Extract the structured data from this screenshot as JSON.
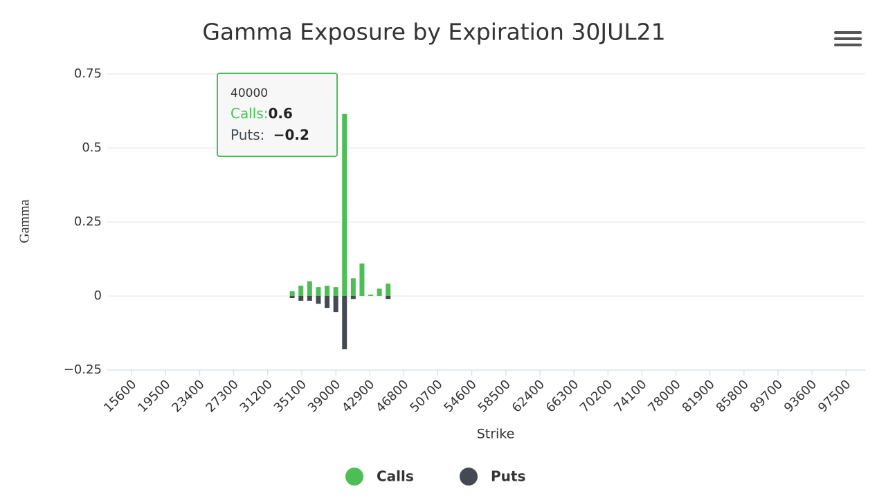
{
  "chart_data": {
    "type": "bar",
    "title": "Gamma Exposure by Expiration 30JUL21",
    "x_label": "Strike",
    "y_label": "Gamma",
    "x": [
      34000,
      35000,
      36000,
      37000,
      38000,
      39000,
      40000,
      41000,
      42000,
      43000,
      44000,
      45000
    ],
    "series": [
      {
        "name": "Calls",
        "color": "#4cbe55",
        "values": [
          0.016,
          0.035,
          0.05,
          0.03,
          0.035,
          0.03,
          0.615,
          0.06,
          0.11,
          0.005,
          0.025,
          0.042
        ]
      },
      {
        "name": "Puts",
        "color": "#434a52",
        "values": [
          -0.007,
          -0.016,
          -0.016,
          -0.026,
          -0.04,
          -0.054,
          -0.18,
          -0.01,
          0,
          0,
          0,
          -0.01
        ]
      }
    ],
    "xlim": [
      12800,
      99700
    ],
    "xticks": [
      15600,
      19500,
      23400,
      27300,
      31200,
      35100,
      39000,
      42900,
      46800,
      50700,
      54600,
      58500,
      62400,
      66300,
      70200,
      74100,
      78000,
      81900,
      85800,
      89700,
      93600,
      97500
    ],
    "ylim": [
      -0.25,
      0.75
    ],
    "yticks": [
      {
        "value": -0.25,
        "label": "−0.25"
      },
      0,
      0.25,
      0.5,
      0.75
    ],
    "grid": true,
    "legend": "bottom",
    "tooltip": {
      "header": "40000",
      "calls_label": "Calls:",
      "calls_value": "0.6",
      "puts_label": "Puts: ",
      "puts_value": "−0.2"
    }
  }
}
